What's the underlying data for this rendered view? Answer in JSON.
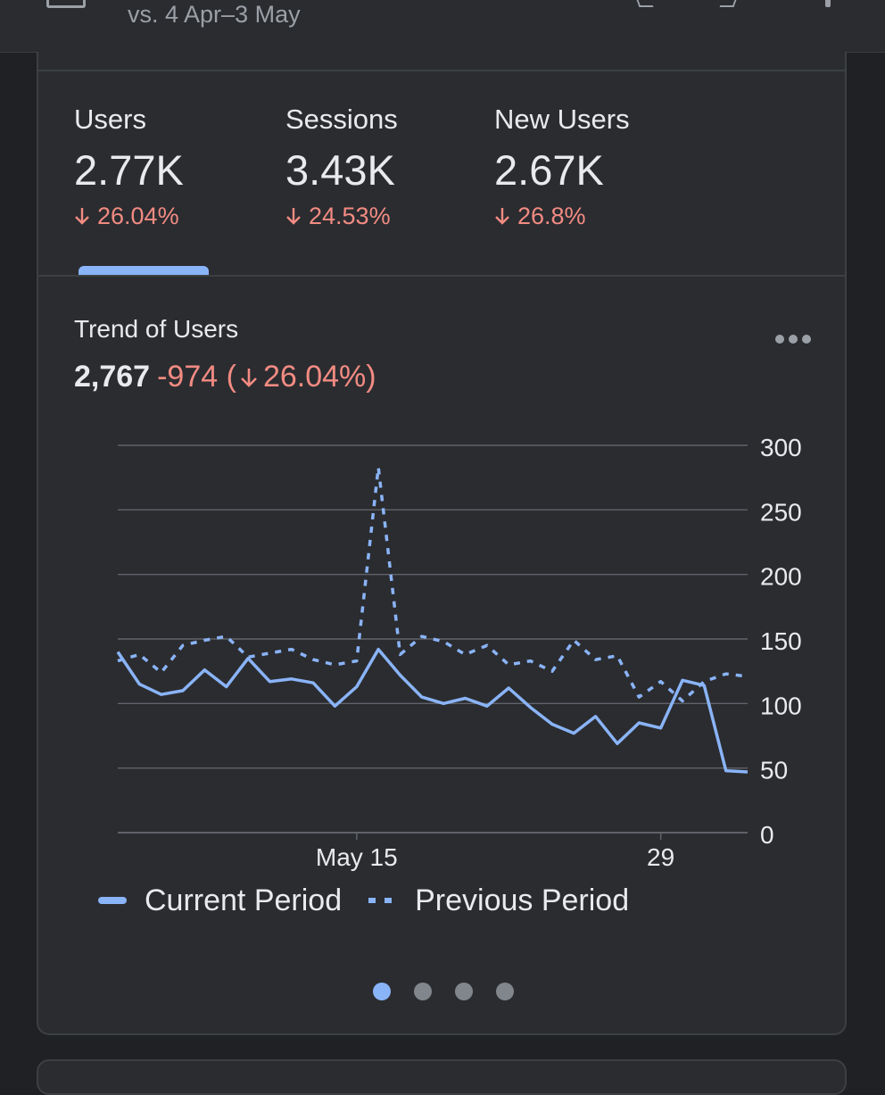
{
  "header": {
    "comparison_label": "vs. 4 Apr–3 May"
  },
  "metrics": [
    {
      "label": "Users",
      "value": "2.77K",
      "change": "26.04%",
      "selected": true
    },
    {
      "label": "Sessions",
      "value": "3.43K",
      "change": "24.53%",
      "selected": false
    },
    {
      "label": "New Users",
      "value": "2.67K",
      "change": "26.8%",
      "selected": false
    }
  ],
  "trend": {
    "title": "Trend of Users",
    "total": "2,767",
    "delta": "-974",
    "delta_pct": "26.04%"
  },
  "colors": {
    "accent": "#8ab4f8",
    "negative": "#f28b82",
    "grid": "#5f6368",
    "text": "#e8eaed"
  },
  "carousel": {
    "pages": 4,
    "active": 0
  },
  "chart_data": {
    "type": "line",
    "x_start": "2023-05-04",
    "x_tick_labels": [
      {
        "date": "2023-05-15",
        "label": "May 15"
      },
      {
        "date": "2023-05-29",
        "label": "29"
      }
    ],
    "y_ticks": [
      0,
      50,
      100,
      150,
      200,
      250,
      300
    ],
    "ylim": [
      0,
      300
    ],
    "grid": true,
    "legend_position": "bottom",
    "series": [
      {
        "name": "Current Period",
        "style": "solid",
        "values": [
          140,
          115,
          107,
          110,
          126,
          113,
          135,
          117,
          119,
          116,
          98,
          113,
          142,
          122,
          105,
          100,
          104,
          98,
          112,
          97,
          84,
          77,
          90,
          69,
          85,
          81,
          118,
          114,
          48,
          47
        ]
      },
      {
        "name": "Previous Period",
        "style": "dotted",
        "values": [
          133,
          138,
          124,
          145,
          149,
          152,
          136,
          139,
          142,
          134,
          130,
          133,
          283,
          138,
          152,
          148,
          138,
          145,
          130,
          133,
          125,
          149,
          134,
          137,
          105,
          117,
          102,
          117,
          123,
          121
        ]
      }
    ]
  }
}
